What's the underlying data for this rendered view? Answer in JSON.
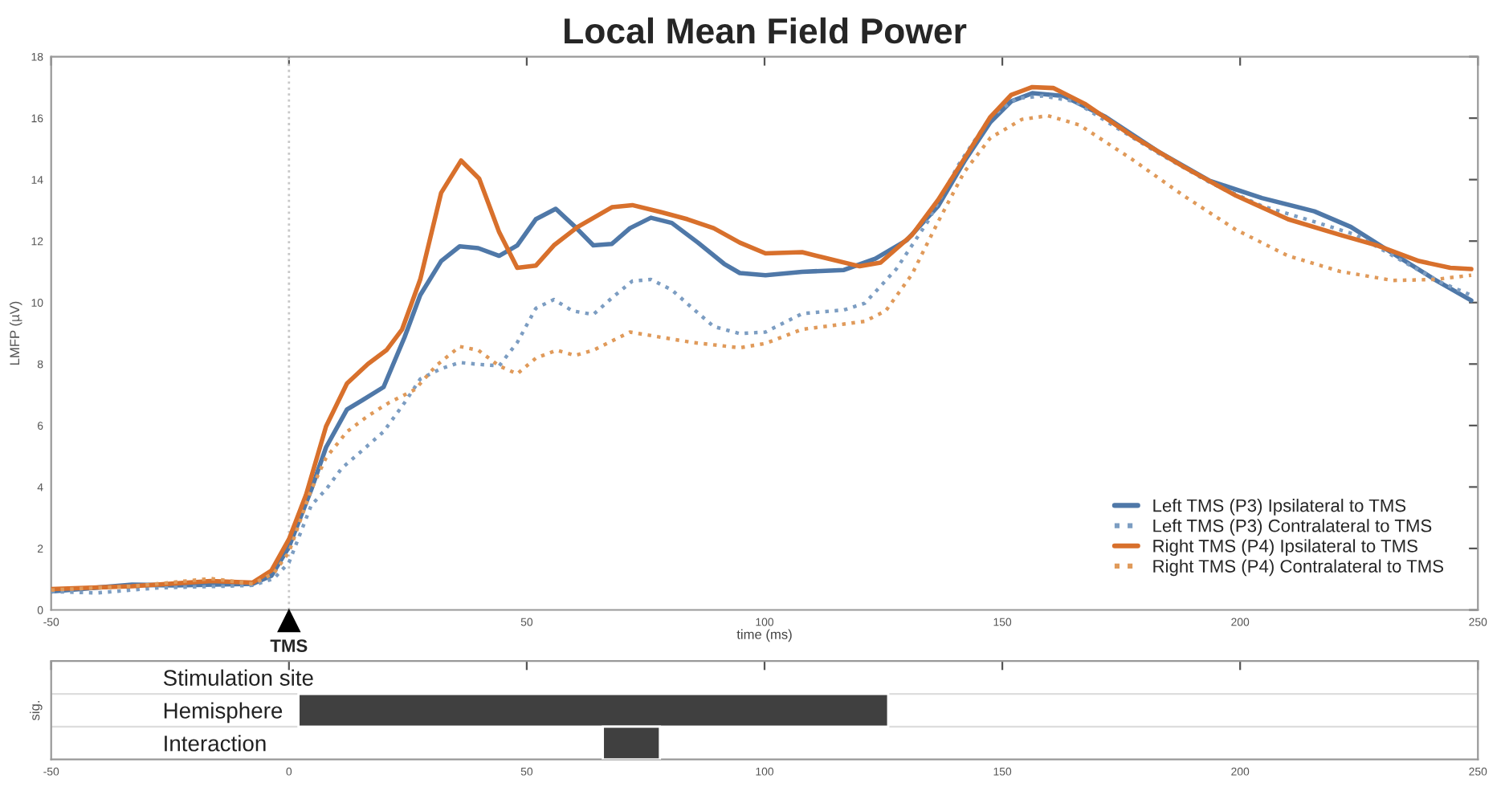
{
  "chart_data": [
    {
      "type": "line",
      "title": "Local Mean Field Power",
      "xlabel": "time (ms)",
      "ylabel": "LMFP (µV)",
      "xlim": [
        -50,
        250
      ],
      "xticks": [
        -50,
        {
          "value": 0,
          "label": null
        },
        50,
        100,
        150,
        200,
        250
      ],
      "ylim": [
        0,
        18
      ],
      "yticks": [
        0,
        2,
        4,
        6,
        8,
        10,
        12,
        14,
        16,
        18
      ],
      "grid": false,
      "legend": "bottom right",
      "ref_lines": [
        {
          "axis": "x",
          "value": 0,
          "label": "TMS",
          "color": "#c8c8c8",
          "line_style": "dotted"
        }
      ],
      "series": [
        {
          "name": "Left TMS (P3) Ipsilateral to TMS",
          "color": "#4f78a8",
          "line_style": "solid",
          "x": [
            -50,
            -33,
            -24.1,
            -7.6,
            -3.7,
            0,
            4.7,
            7.8,
            12.2,
            15.5,
            19.9,
            24.3,
            27.6,
            32,
            35.9,
            39.8,
            44.2,
            48,
            51.9,
            56.1,
            60.2,
            64,
            67.9,
            71.7,
            76.1,
            80.5,
            86,
            91.5,
            94.8,
            100.2,
            107.9,
            116.7,
            123.3,
            129.9,
            136.5,
            142,
            147.5,
            151.9,
            156.3,
            162.9,
            171.7,
            182.6,
            193.6,
            204.6,
            215.6,
            223.3,
            232.1,
            240.9,
            248.6
          ],
          "values": [
            0.6,
            0.82,
            0.8,
            0.85,
            1.11,
            2.05,
            3.92,
            5.29,
            6.52,
            6.83,
            7.25,
            8.87,
            10.24,
            11.35,
            11.83,
            11.77,
            11.52,
            11.86,
            12.71,
            13.05,
            12.46,
            11.86,
            11.91,
            12.42,
            12.76,
            12.59,
            11.95,
            11.26,
            10.96,
            10.89,
            11.0,
            11.06,
            11.43,
            12.03,
            13.14,
            14.59,
            15.87,
            16.55,
            16.81,
            16.72,
            16.04,
            14.93,
            13.96,
            13.4,
            12.97,
            12.46,
            11.6,
            10.75,
            10.07
          ]
        },
        {
          "name": "Left TMS (P3) Contralateral to TMS",
          "color": "#7c9dc2",
          "line_style": "dotted",
          "x": [
            -50,
            -40.6,
            -27.4,
            -14.2,
            -7.6,
            -3.2,
            0,
            4.7,
            7.8,
            11.1,
            15.5,
            19.9,
            24.3,
            27.6,
            32,
            35.9,
            39.8,
            44.2,
            48,
            51.9,
            55.7,
            59.6,
            64,
            67.9,
            72.2,
            76.1,
            80.5,
            84.9,
            89.3,
            94.8,
            100.2,
            107.9,
            116.7,
            121.1,
            127.7,
            134.3,
            140.9,
            147.5,
            153,
            158.5,
            165.1,
            173.9,
            182.6,
            193.6,
            204.6,
            215.6,
            224.4,
            233.2,
            242,
            248.6
          ],
          "values": [
            0.6,
            0.55,
            0.72,
            0.77,
            0.8,
            1.02,
            1.54,
            3.41,
            3.92,
            4.61,
            5.2,
            5.8,
            6.74,
            7.51,
            7.85,
            8.05,
            7.99,
            7.94,
            8.7,
            9.81,
            10.1,
            9.73,
            9.61,
            10.15,
            10.7,
            10.75,
            10.41,
            9.81,
            9.22,
            8.99,
            9.04,
            9.64,
            9.76,
            9.98,
            11.09,
            12.63,
            14.51,
            16.04,
            16.64,
            16.72,
            16.55,
            15.7,
            14.88,
            13.91,
            13.14,
            12.63,
            12.2,
            11.43,
            10.67,
            10.24
          ]
        },
        {
          "name": "Right TMS (P4) Ipsilateral to TMS",
          "color": "#d8702c",
          "line_style": "solid",
          "x": [
            -50,
            -33,
            -16.4,
            -7.6,
            -3.7,
            0,
            3.6,
            7.8,
            12.2,
            16.6,
            20.5,
            23.8,
            27.6,
            32,
            36.2,
            40,
            44.2,
            48,
            51.9,
            55.7,
            60.7,
            67.9,
            72.2,
            78.3,
            83.8,
            89.3,
            94.8,
            100.2,
            107.9,
            112.3,
            120,
            124.4,
            131,
            136.5,
            142,
            147.5,
            151.9,
            156.3,
            160.7,
            167.3,
            177.1,
            188.1,
            199.1,
            210.1,
            221.1,
            228.8,
            237.6,
            244.2,
            248.6
          ],
          "values": [
            0.68,
            0.77,
            0.94,
            0.89,
            1.28,
            2.3,
            3.75,
            5.97,
            7.37,
            8.0,
            8.45,
            9.13,
            10.75,
            13.57,
            14.62,
            14.03,
            12.29,
            11.13,
            11.2,
            11.86,
            12.46,
            13.1,
            13.17,
            12.94,
            12.71,
            12.42,
            11.95,
            11.6,
            11.64,
            11.47,
            11.18,
            11.3,
            12.2,
            13.34,
            14.68,
            16.04,
            16.76,
            17.01,
            16.98,
            16.47,
            15.44,
            14.42,
            13.48,
            12.71,
            12.2,
            11.86,
            11.35,
            11.13,
            11.09
          ]
        },
        {
          "name": "Right TMS (P4) Contralateral to TMS",
          "color": "#e09a5a",
          "line_style": "dotted",
          "x": [
            -50,
            -33,
            -16.4,
            -7.6,
            -3.2,
            0,
            4.7,
            7.8,
            12.2,
            16.6,
            21,
            26.5,
            30.9,
            35.9,
            39.8,
            44.2,
            48,
            51.9,
            56.3,
            60.2,
            64,
            71.7,
            78.3,
            84.9,
            94.8,
            100.2,
            107.9,
            116.7,
            121.1,
            125.5,
            131,
            136.5,
            142,
            147.5,
            154.1,
            159.6,
            166.2,
            177.1,
            188.1,
            199.1,
            210.1,
            221.1,
            232.1,
            240.9,
            248.6
          ],
          "values": [
            0.65,
            0.77,
            1.02,
            0.85,
            1.19,
            1.88,
            3.92,
            4.95,
            5.8,
            6.31,
            6.74,
            7.17,
            7.94,
            8.57,
            8.45,
            7.94,
            7.68,
            8.19,
            8.45,
            8.28,
            8.45,
            9.04,
            8.87,
            8.7,
            8.53,
            8.67,
            9.13,
            9.3,
            9.39,
            9.73,
            10.92,
            12.63,
            14.25,
            15.36,
            15.96,
            16.08,
            15.78,
            14.68,
            13.48,
            12.37,
            11.52,
            11.01,
            10.72,
            10.75,
            10.89
          ]
        }
      ]
    },
    {
      "type": "bar",
      "orientation": "horizontal",
      "ylabel": "sig.",
      "categories": [
        "Stimulation site",
        "Hemisphere",
        "Interaction"
      ],
      "values": [
        null,
        124,
        12
      ],
      "base": [
        null,
        2,
        66
      ],
      "colors": [
        "#404040",
        "#404040",
        "#404040"
      ],
      "xlim": [
        -50,
        250
      ],
      "xticks": [
        -50,
        0,
        50,
        100,
        150,
        200,
        250
      ],
      "grid": "y"
    }
  ]
}
